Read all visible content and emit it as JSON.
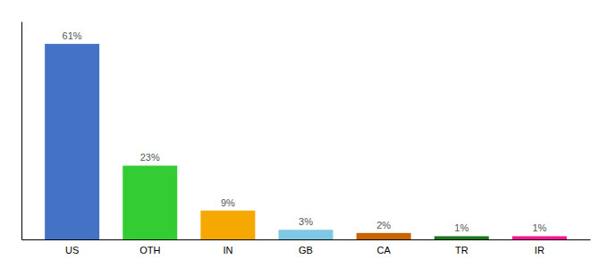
{
  "chart_data": {
    "type": "bar",
    "categories": [
      "US",
      "OTH",
      "IN",
      "GB",
      "CA",
      "TR",
      "IR"
    ],
    "values": [
      61,
      23,
      9,
      3,
      2,
      1,
      1
    ],
    "value_labels": [
      "61%",
      "23%",
      "9%",
      "3%",
      "2%",
      "1%",
      "1%"
    ],
    "data_labels": true,
    "colors": [
      "#4472c4",
      "#33cc33",
      "#f5a800",
      "#7ec8e3",
      "#c86400",
      "#1a7a1a",
      "#ff1493"
    ],
    "ylim": [
      0,
      68
    ],
    "tick_labels": "x",
    "grid": false
  }
}
